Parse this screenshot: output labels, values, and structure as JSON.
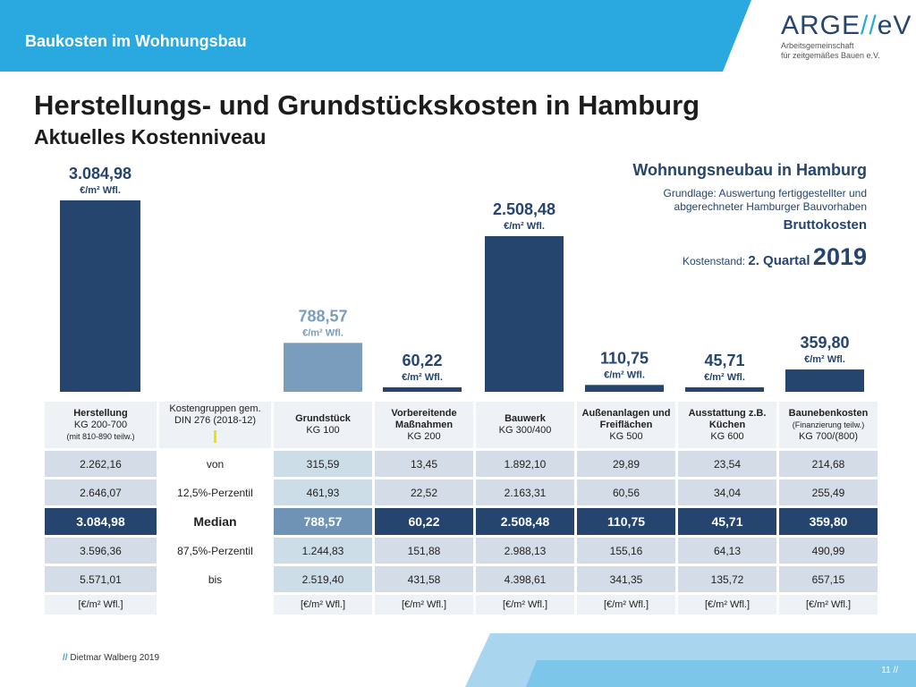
{
  "header": {
    "banner_title": "Baukosten im Wohnungsbau",
    "logo_main_a": "ARGE",
    "logo_main_slash": "//",
    "logo_main_b": "eV",
    "logo_sub_1": "Arbeitsgemeinschaft",
    "logo_sub_2": "für zeitgemäßes Bauen e.V."
  },
  "title": "Herstellungs- und Grundstückskosten in Hamburg",
  "subtitle": "Aktuelles Kostenniveau",
  "info": {
    "heading": "Wohnungsneubau in Hamburg",
    "basis": "Grundlage: Auswertung fertiggestellter und abgerechneter Hamburger Bauvorhaben",
    "cost_type": "Bruttokosten",
    "stand_label": "Kostenstand:",
    "stand_quartal": "2. Quartal",
    "stand_year": "2019"
  },
  "colors": {
    "dark": "#26456e",
    "light": "#7a9dbd",
    "accent": "#29a9df",
    "banner": "#29a9df"
  },
  "chart_data": {
    "type": "bar",
    "unit": "€/m² Wfl.",
    "categories": [
      "Herstellung",
      "Grundstück",
      "Vorbereitende Maßnahmen",
      "Bauwerk",
      "Außenanlagen und Freiflächen",
      "Ausstattung z.B. Küchen",
      "Baunebenkosten"
    ],
    "values": [
      3084.98,
      788.57,
      60.22,
      2508.48,
      110.75,
      45.71,
      359.8
    ],
    "value_labels": [
      "3.084,98",
      "788,57",
      "60,22",
      "2.508,48",
      "110,75",
      "45,71",
      "359,80"
    ],
    "bar_styles": [
      "dark",
      "light",
      "dark",
      "dark",
      "dark",
      "dark",
      "dark"
    ],
    "label_colors": [
      "dark",
      "light",
      "dark",
      "dark",
      "dark",
      "dark",
      "dark"
    ]
  },
  "table": {
    "headers": [
      {
        "title": "Herstellung",
        "line2": "KG 200-700",
        "line3": "(mit 810-890 teilw.)"
      },
      {
        "title": "",
        "line2": "Kostengruppen gem.",
        "line3": "DIN 276 (2018-12)"
      },
      {
        "title": "Grundstück",
        "line2": "KG 100",
        "line3": ""
      },
      {
        "title": "Vorbereitende Maßnahmen",
        "line2": "KG 200",
        "line3": ""
      },
      {
        "title": "Bauwerk",
        "line2": "KG 300/400",
        "line3": ""
      },
      {
        "title": "Außenanlagen und Freiflächen",
        "line2": "KG 500",
        "line3": ""
      },
      {
        "title": "Ausstattung z.B. Küchen",
        "line2": "KG 600",
        "line3": ""
      },
      {
        "title": "Baunebenkosten",
        "line2": "(Finanzierung teilw.)",
        "line3": "KG 700/(800)"
      }
    ],
    "rows": [
      {
        "label": "von",
        "values": [
          "2.262,16",
          "315,59",
          "13,45",
          "1.892,10",
          "29,89",
          "23,54",
          "214,68"
        ]
      },
      {
        "label": "12,5%-Perzentil",
        "values": [
          "2.646,07",
          "461,93",
          "22,52",
          "2.163,31",
          "60,56",
          "34,04",
          "255,49"
        ]
      },
      {
        "label": "Median",
        "values": [
          "3.084,98",
          "788,57",
          "60,22",
          "2.508,48",
          "110,75",
          "45,71",
          "359,80"
        ]
      },
      {
        "label": "87,5%-Perzentil",
        "values": [
          "3.596,36",
          "1.244,83",
          "151,88",
          "2.988,13",
          "155,16",
          "64,13",
          "490,99"
        ]
      },
      {
        "label": "bis",
        "values": [
          "5.571,01",
          "2.519,40",
          "431,58",
          "4.398,61",
          "341,35",
          "135,72",
          "657,15"
        ]
      }
    ],
    "units": [
      "[€/m² Wfl.]",
      "",
      "[€/m² Wfl.]",
      "[€/m² Wfl.]",
      "[€/m² Wfl.]",
      "[€/m² Wfl.]",
      "[€/m² Wfl.]",
      "[€/m² Wfl.]"
    ]
  },
  "footer": {
    "author_slash": "//",
    "author": "Dietmar Walberg 2019",
    "page": "11 //"
  }
}
